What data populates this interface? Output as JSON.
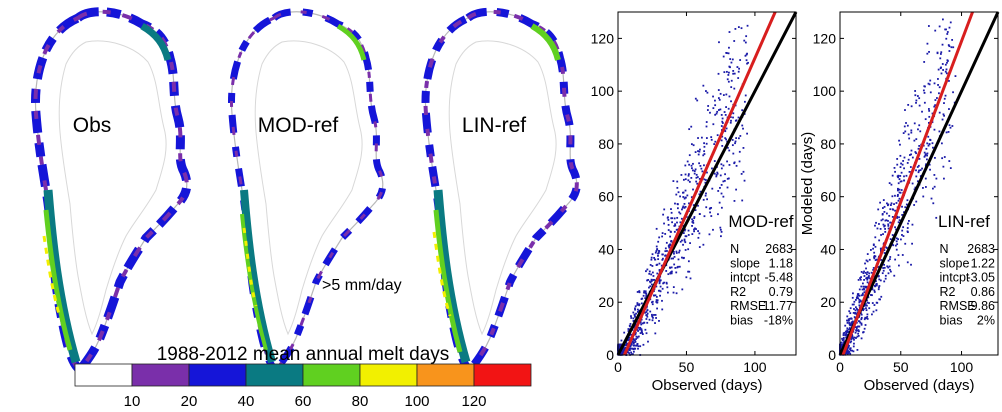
{
  "maps": {
    "panels": [
      {
        "label": "Obs"
      },
      {
        "label": "MOD-ref"
      },
      {
        "label": "LIN-ref"
      }
    ],
    "note": ">5 mm/day",
    "colorbar": {
      "title": "1988-2012 mean annual melt days",
      "ticks": [
        "10",
        "20",
        "40",
        "60",
        "80",
        "100",
        "120"
      ],
      "colors": [
        "#ffffff",
        "#7a2faa",
        "#1515d8",
        "#0a7a82",
        "#60d020",
        "#f2f000",
        "#f8941c",
        "#f21414"
      ]
    }
  },
  "chart_data": [
    {
      "type": "scatter",
      "name": "MOD-ref",
      "xlabel": "Observed (days)",
      "ylabel": "",
      "xlim": [
        0,
        130
      ],
      "ylim": [
        0,
        130
      ],
      "xticks": [
        "0",
        "50",
        "100"
      ],
      "yticks": [
        "0",
        "20",
        "40",
        "60",
        "80",
        "100",
        "120"
      ],
      "point_color": "#1a1aa8",
      "lines": [
        {
          "name": "1:1",
          "color": "#000000",
          "slope": 1.0,
          "intercept": 0
        },
        {
          "name": "fit",
          "color": "#d81e1e",
          "slope": 1.18,
          "intercept": -5.48
        }
      ],
      "stats": [
        {
          "key": "N",
          "value": "2683"
        },
        {
          "key": "slope",
          "value": "1.18"
        },
        {
          "key": "intcpt",
          "value": "-5.48"
        },
        {
          "key": "R2",
          "value": "0.79"
        },
        {
          "key": "RMSE",
          "value": "11.77"
        },
        {
          "key": "bias",
          "value": "-18%"
        }
      ]
    },
    {
      "type": "scatter",
      "name": "LIN-ref",
      "xlabel": "Observed (days)",
      "ylabel": "Modeled (days)",
      "xlim": [
        0,
        130
      ],
      "ylim": [
        0,
        130
      ],
      "xticks": [
        "0",
        "50",
        "100"
      ],
      "yticks": [
        "0",
        "20",
        "40",
        "60",
        "80",
        "100",
        "120"
      ],
      "point_color": "#1a1aa8",
      "lines": [
        {
          "name": "1:1",
          "color": "#000000",
          "slope": 1.0,
          "intercept": 0
        },
        {
          "name": "fit",
          "color": "#d81e1e",
          "slope": 1.22,
          "intercept": -3.05
        }
      ],
      "stats": [
        {
          "key": "N",
          "value": "2683"
        },
        {
          "key": "slope",
          "value": "1.22"
        },
        {
          "key": "intcpt",
          "value": "-3.05"
        },
        {
          "key": "R2",
          "value": "0.86"
        },
        {
          "key": "RMSE",
          "value": "9.86"
        },
        {
          "key": "bias",
          "value": "2%"
        }
      ]
    }
  ]
}
